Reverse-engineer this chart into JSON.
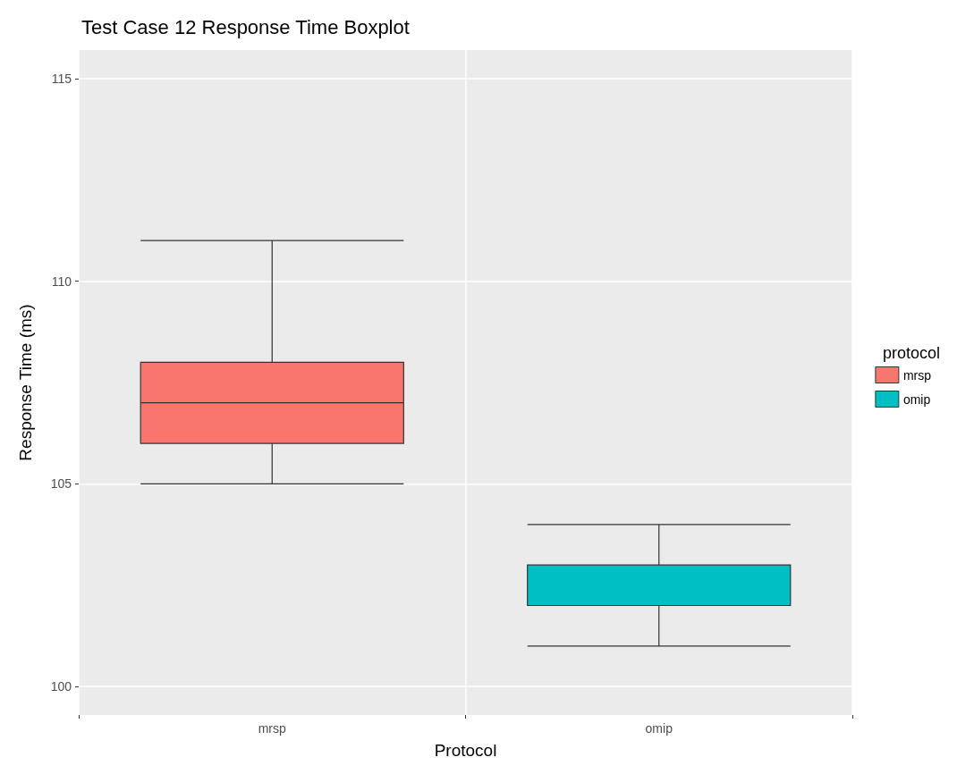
{
  "chart_data": {
    "type": "box",
    "title": "Test Case 12 Response Time Boxplot",
    "xlabel": "Protocol",
    "ylabel": "Response Time (ms)",
    "legend_title": "protocol",
    "legend": "right",
    "grid": true,
    "categories": [
      "mrsp",
      "omip"
    ],
    "ylim": [
      99.3,
      115.7
    ],
    "yticks": [
      100,
      105,
      110,
      115
    ],
    "series": [
      {
        "name": "mrsp",
        "color": "#f8766d",
        "boxes": [
          {
            "low": 105,
            "q1": 106,
            "median": 107,
            "q3": 108,
            "high": 111
          },
          null
        ]
      },
      {
        "name": "omip",
        "color": "#00bfc4",
        "boxes": [
          null,
          {
            "low": 101,
            "q1": 102,
            "median": 103,
            "q3": 103,
            "high": 104
          }
        ]
      }
    ]
  }
}
